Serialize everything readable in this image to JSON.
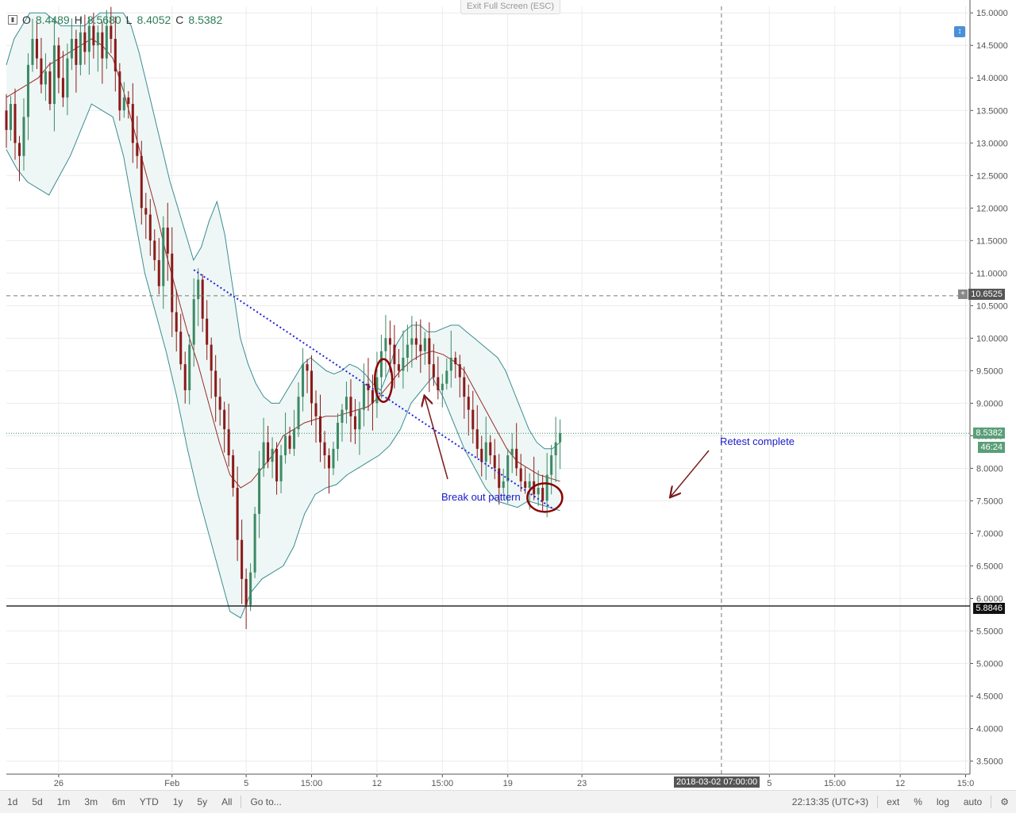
{
  "toolbar": {
    "exit_fullscreen": "Exit Full Screen (ESC)"
  },
  "ohlc": {
    "o_label": "O",
    "o": "8.4489",
    "h_label": "H",
    "h": "8.5680",
    "l_label": "L",
    "l": "8.4052",
    "c_label": "C",
    "c": "8.5382"
  },
  "annotations": {
    "breakout": "Break out pattern",
    "retest": "Retest complete"
  },
  "price_labels": {
    "current": "8.5382",
    "countdown": "46:24",
    "crosshair": "10.6525",
    "support": "5.8846",
    "crosshair_time": "2018-03-02 07:00:00"
  },
  "bottom": {
    "ranges": [
      "1d",
      "5d",
      "1m",
      "3m",
      "6m",
      "YTD",
      "1y",
      "5y",
      "All"
    ],
    "goto": "Go to...",
    "clock": "22:13:35 (UTC+3)",
    "ext": "ext",
    "percent": "%",
    "log": "log",
    "auto": "auto"
  },
  "colors": {
    "up": "#3d8a66",
    "down": "#8b1a1a",
    "band": "#3c8c93",
    "band_fill": "#eef7f5",
    "basis": "#9a2b2b",
    "trendline": "#2222dd",
    "circle": "#8b0000"
  },
  "chart_data": {
    "type": "candlestick",
    "y_ticks": [
      "15.0000",
      "14.5000",
      "14.0000",
      "13.5000",
      "13.0000",
      "12.5000",
      "12.0000",
      "11.5000",
      "11.0000",
      "10.5000",
      "10.0000",
      "9.5000",
      "9.0000",
      "8.5000",
      "8.0000",
      "7.5000",
      "7.0000",
      "6.5000",
      "6.0000",
      "5.5000",
      "5.0000",
      "4.5000",
      "4.0000",
      "3.5000"
    ],
    "x_ticks": [
      {
        "label": "26",
        "t": 12
      },
      {
        "label": "Feb",
        "t": 38
      },
      {
        "label": "5",
        "t": 55
      },
      {
        "label": "15:00",
        "t": 70
      },
      {
        "label": "12",
        "t": 85
      },
      {
        "label": "15:00",
        "t": 100
      },
      {
        "label": "19",
        "t": 115
      },
      {
        "label": "23",
        "t": 132
      },
      {
        "label": "5",
        "t": 175
      },
      {
        "label": "15:00",
        "t": 190
      },
      {
        "label": "12",
        "t": 205
      },
      {
        "label": "15:0",
        "t": 220
      }
    ],
    "ylim": [
      3.3,
      15.1
    ],
    "xlim": [
      0,
      221
    ],
    "current_price": 8.5382,
    "support_level": 5.8846,
    "crosshair_price": 10.6525,
    "crosshair_t": 164,
    "closes": [
      13.2,
      13.6,
      13.0,
      12.8,
      13.4,
      14.2,
      14.6,
      14.3,
      13.9,
      14.1,
      13.6,
      14.5,
      14.0,
      13.7,
      14.3,
      14.6,
      14.2,
      14.7,
      14.4,
      14.8,
      14.5,
      14.7,
      14.3,
      14.8,
      14.6,
      14.1,
      13.5,
      13.7,
      13.6,
      13.0,
      12.8,
      12.0,
      11.9,
      11.5,
      11.2,
      10.8,
      11.7,
      11.3,
      10.4,
      10.1,
      9.6,
      9.2,
      9.9,
      10.6,
      10.9,
      10.3,
      9.9,
      9.5,
      9.1,
      8.9,
      8.6,
      8.2,
      7.7,
      6.9,
      6.3,
      5.9,
      6.4,
      7.3,
      8.0,
      8.4,
      8.1,
      8.3,
      7.8,
      8.2,
      8.5,
      8.3,
      8.6,
      9.1,
      9.6,
      9.5,
      9.0,
      8.8,
      8.4,
      8.2,
      8.0,
      8.3,
      8.7,
      8.9,
      9.1,
      8.8,
      8.6,
      8.9,
      9.3,
      9.2,
      9.0,
      9.4,
      9.8,
      10.0,
      9.9,
      9.6,
      9.5,
      9.7,
      9.9,
      10.0,
      9.9,
      9.8,
      10.0,
      9.6,
      9.4,
      9.2,
      9.3,
      9.5,
      9.7,
      9.6,
      9.4,
      9.1,
      8.9,
      8.6,
      8.3,
      8.1,
      8.4,
      8.2,
      8.0,
      7.7,
      7.8,
      8.2,
      8.3,
      8.0,
      7.8,
      7.7,
      7.8,
      7.6,
      7.7,
      7.5,
      7.9,
      8.2,
      8.4,
      8.5382
    ],
    "bb_upper": [
      14.2,
      14.6,
      14.8,
      15.0,
      15.0,
      15.0,
      14.9,
      14.8,
      14.8,
      14.8,
      14.8,
      14.9,
      15.0,
      15.0,
      15.0,
      15.0,
      14.8,
      14.4,
      13.9,
      13.4,
      12.9,
      12.4,
      12.0,
      11.6,
      11.2,
      11.4,
      11.8,
      12.1,
      11.6,
      10.8,
      10.0,
      9.6,
      9.3,
      9.1,
      9.0,
      9.0,
      9.2,
      9.4,
      9.6,
      9.7,
      9.6,
      9.5,
      9.45,
      9.5,
      9.6,
      9.55,
      9.45,
      9.3,
      9.2,
      9.5,
      9.9,
      10.1,
      10.2,
      10.2,
      10.1,
      10.1,
      10.15,
      10.2,
      10.2,
      10.1,
      10.0,
      9.9,
      9.8,
      9.7,
      9.5,
      9.2,
      8.9,
      8.6,
      8.4,
      8.3,
      8.3,
      8.4
    ],
    "bb_basis": [
      13.7,
      13.8,
      13.9,
      14.0,
      14.2,
      14.3,
      14.4,
      14.5,
      14.6,
      14.5,
      14.3,
      13.8,
      13.2,
      12.6,
      12.0,
      11.3,
      10.7,
      10.1,
      9.6,
      9.0,
      8.4,
      7.9,
      7.7,
      7.8,
      8.0,
      8.2,
      8.5,
      8.6,
      8.7,
      8.75,
      8.8,
      8.8,
      8.85,
      8.9,
      8.95,
      9.1,
      9.3,
      9.5,
      9.65,
      9.75,
      9.8,
      9.75,
      9.65,
      9.5,
      9.2,
      8.9,
      8.6,
      8.3,
      8.1,
      8.0,
      7.9,
      7.85,
      7.8
    ],
    "bb_lower": [
      12.9,
      12.6,
      12.4,
      12.3,
      12.2,
      12.5,
      12.8,
      13.2,
      13.6,
      13.5,
      13.4,
      12.8,
      11.9,
      11.0,
      10.4,
      9.8,
      9.1,
      8.3,
      7.6,
      7.0,
      6.4,
      5.8,
      5.7,
      6.1,
      6.3,
      6.4,
      6.5,
      6.8,
      7.3,
      7.6,
      7.7,
      7.75,
      7.9,
      8.0,
      8.1,
      8.2,
      8.35,
      8.6,
      9.0,
      9.2,
      9.4,
      9.1,
      8.7,
      8.3,
      8.0,
      7.7,
      7.5,
      7.45,
      7.4,
      7.5,
      7.45,
      7.4,
      7.35
    ]
  }
}
